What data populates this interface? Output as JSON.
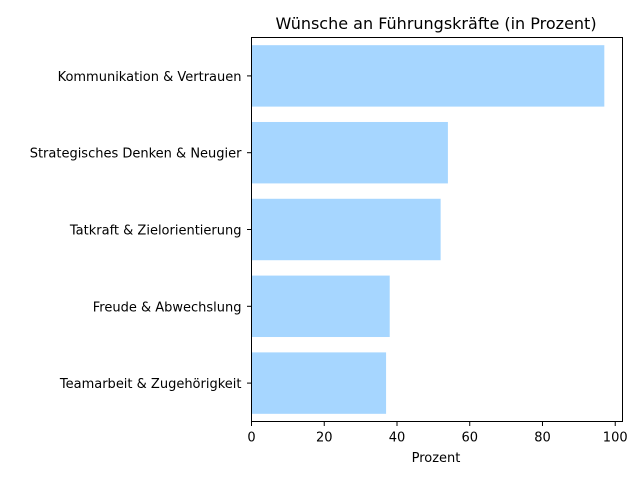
{
  "chart_data": {
    "type": "bar",
    "orientation": "horizontal",
    "title": "Wünsche an Führungskräfte (in Prozent)",
    "xlabel": "Prozent",
    "ylabel": "",
    "categories": [
      "Kommunikation & Vertrauen",
      "Strategisches Denken & Neugier",
      "Tatkraft & Zielorientierung",
      "Freude & Abwechslung",
      "Teamarbeit & Zugehörigkeit"
    ],
    "values": [
      97,
      54,
      52,
      38,
      37
    ],
    "xlim": [
      0,
      102
    ],
    "xticks": [
      "0",
      "20",
      "40",
      "60",
      "80",
      "100"
    ],
    "bar_color": "#a6d6ff",
    "grid": false,
    "legend": "none"
  }
}
